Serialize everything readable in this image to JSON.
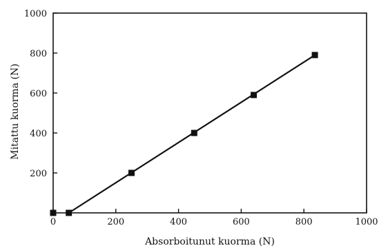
{
  "chart_data": {
    "type": "line",
    "title": "",
    "xlabel": "Absorboitunut kuorma (N)",
    "ylabel": "Mitattu kuorma (N)",
    "xlim": [
      0,
      1000
    ],
    "ylim": [
      0,
      1000
    ],
    "xticks": [
      0,
      200,
      400,
      600,
      800,
      1000
    ],
    "yticks": [
      200,
      400,
      600,
      800,
      1000
    ],
    "xtick_labels": [
      "0",
      "200",
      "400",
      "600",
      "800",
      "1000"
    ],
    "ytick_labels": [
      "200",
      "400",
      "600",
      "800",
      "1000"
    ],
    "grid": false,
    "legend": "none",
    "series": [
      {
        "marker": "square",
        "color": "#111111",
        "points": [
          {
            "x": 0,
            "y": 0
          },
          {
            "x": 50,
            "y": 0
          },
          {
            "x": 250,
            "y": 200
          },
          {
            "x": 450,
            "y": 400
          },
          {
            "x": 640,
            "y": 590
          },
          {
            "x": 835,
            "y": 790
          }
        ],
        "line": [
          {
            "x": 50,
            "y": 0
          },
          {
            "x": 835,
            "y": 790
          }
        ]
      }
    ]
  }
}
